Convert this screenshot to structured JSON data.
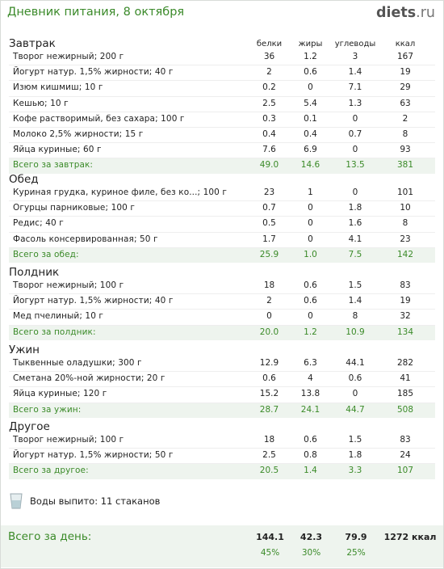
{
  "header": {
    "title": "Дневник питания, 8 октября",
    "logo_main": "diets",
    "logo_tld": ".ru"
  },
  "columns": {
    "protein": "белки",
    "fat": "жиры",
    "carbs": "углеводы",
    "kcal": "ккал"
  },
  "sections": [
    {
      "title": "Завтрак",
      "items": [
        {
          "name": "Творог нежирный; 200 г",
          "protein": "36",
          "fat": "1.2",
          "carbs": "3",
          "kcal": "167"
        },
        {
          "name": "Йогурт натур. 1,5% жирности; 40 г",
          "protein": "2",
          "fat": "0.6",
          "carbs": "1.4",
          "kcal": "19"
        },
        {
          "name": "Изюм кишмиш; 10 г",
          "protein": "0.2",
          "fat": "0",
          "carbs": "7.1",
          "kcal": "29"
        },
        {
          "name": "Кешью; 10 г",
          "protein": "2.5",
          "fat": "5.4",
          "carbs": "1.3",
          "kcal": "63"
        },
        {
          "name": "Кофе растворимый, без сахара; 100 г",
          "protein": "0.3",
          "fat": "0.1",
          "carbs": "0",
          "kcal": "2"
        },
        {
          "name": "Молоко 2,5% жирности; 15 г",
          "protein": "0.4",
          "fat": "0.4",
          "carbs": "0.7",
          "kcal": "8"
        },
        {
          "name": "Яйца куриные; 60 г",
          "protein": "7.6",
          "fat": "6.9",
          "carbs": "0",
          "kcal": "93"
        }
      ],
      "total": {
        "name": "Всего за завтрак:",
        "protein": "49.0",
        "fat": "14.6",
        "carbs": "13.5",
        "kcal": "381"
      }
    },
    {
      "title": "Обед",
      "items": [
        {
          "name": "Куриная грудка, куриное филе, без ко...; 100 г",
          "protein": "23",
          "fat": "1",
          "carbs": "0",
          "kcal": "101"
        },
        {
          "name": "Огурцы парниковые; 100 г",
          "protein": "0.7",
          "fat": "0",
          "carbs": "1.8",
          "kcal": "10"
        },
        {
          "name": "Редис; 40 г",
          "protein": "0.5",
          "fat": "0",
          "carbs": "1.6",
          "kcal": "8"
        },
        {
          "name": "Фасоль консервированная; 50 г",
          "protein": "1.7",
          "fat": "0",
          "carbs": "4.1",
          "kcal": "23"
        }
      ],
      "total": {
        "name": "Всего за обед:",
        "protein": "25.9",
        "fat": "1.0",
        "carbs": "7.5",
        "kcal": "142"
      }
    },
    {
      "title": "Полдник",
      "items": [
        {
          "name": "Творог нежирный; 100 г",
          "protein": "18",
          "fat": "0.6",
          "carbs": "1.5",
          "kcal": "83"
        },
        {
          "name": "Йогурт натур. 1,5% жирности; 40 г",
          "protein": "2",
          "fat": "0.6",
          "carbs": "1.4",
          "kcal": "19"
        },
        {
          "name": "Мед пчелиный; 10 г",
          "protein": "0",
          "fat": "0",
          "carbs": "8",
          "kcal": "32"
        }
      ],
      "total": {
        "name": "Всего за полдник:",
        "protein": "20.0",
        "fat": "1.2",
        "carbs": "10.9",
        "kcal": "134"
      }
    },
    {
      "title": "Ужин",
      "items": [
        {
          "name": "Тыквенные оладушки; 300 г",
          "protein": "12.9",
          "fat": "6.3",
          "carbs": "44.1",
          "kcal": "282"
        },
        {
          "name": "Сметана 20%-ной жирности; 20 г",
          "protein": "0.6",
          "fat": "4",
          "carbs": "0.6",
          "kcal": "41"
        },
        {
          "name": "Яйца куриные; 120 г",
          "protein": "15.2",
          "fat": "13.8",
          "carbs": "0",
          "kcal": "185"
        }
      ],
      "total": {
        "name": "Всего за ужин:",
        "protein": "28.7",
        "fat": "24.1",
        "carbs": "44.7",
        "kcal": "508"
      }
    },
    {
      "title": "Другое",
      "items": [
        {
          "name": "Творог нежирный; 100 г",
          "protein": "18",
          "fat": "0.6",
          "carbs": "1.5",
          "kcal": "83"
        },
        {
          "name": "Йогурт натур. 1,5% жирности; 50 г",
          "protein": "2.5",
          "fat": "0.8",
          "carbs": "1.8",
          "kcal": "24"
        }
      ],
      "total": {
        "name": "Всего за другое:",
        "protein": "20.5",
        "fat": "1.4",
        "carbs": "3.3",
        "kcal": "107"
      }
    }
  ],
  "water": {
    "icon": "water-glass-icon",
    "text": "Воды выпито: 11 стаканов"
  },
  "day_total": {
    "title": "Всего за день:",
    "protein": "144.1",
    "fat": "42.3",
    "carbs": "79.9",
    "kcal": "1272 ккал",
    "protein_pct": "45%",
    "fat_pct": "30%",
    "carbs_pct": "25%"
  },
  "colors": {
    "accent_green": "#3a8a28",
    "total_bg": "#eef4ee"
  }
}
